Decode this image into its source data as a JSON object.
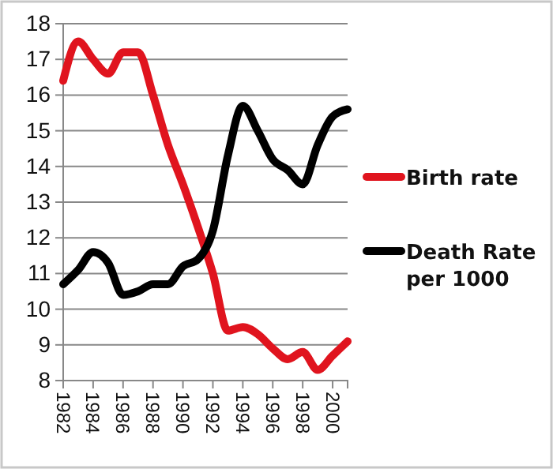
{
  "chart_data": {
    "type": "line",
    "x": [
      1982,
      1983,
      1984,
      1985,
      1986,
      1987,
      1988,
      1989,
      1990,
      1991,
      1992,
      1993,
      1994,
      1995,
      1996,
      1997,
      1998,
      1999,
      2000,
      2001
    ],
    "series": [
      {
        "name": "Birth rate",
        "color": "#e0141e",
        "values": [
          16.4,
          17.5,
          17.0,
          16.6,
          17.2,
          17.2,
          16.0,
          14.6,
          13.5,
          12.3,
          11.0,
          9.4,
          9.5,
          9.3,
          8.9,
          8.6,
          8.8,
          8.3,
          8.7,
          9.1
        ]
      },
      {
        "name": "Death Rate per 1000",
        "color": "#000000",
        "values": [
          10.7,
          11.1,
          11.6,
          11.3,
          10.4,
          10.5,
          10.7,
          10.7,
          11.2,
          11.4,
          12.2,
          14.3,
          15.7,
          15.0,
          14.2,
          13.9,
          13.5,
          14.6,
          15.4,
          15.6
        ]
      }
    ],
    "xlim": [
      1982,
      2001
    ],
    "xticks": [
      1982,
      1984,
      1986,
      1988,
      1990,
      1992,
      1994,
      1996,
      1998,
      2000
    ],
    "ylim": [
      8,
      18
    ],
    "yticks": [
      8,
      9,
      10,
      11,
      12,
      13,
      14,
      15,
      16,
      17,
      18
    ],
    "grid": "y",
    "legend": "right",
    "marker": "none",
    "line_style": "solid"
  }
}
